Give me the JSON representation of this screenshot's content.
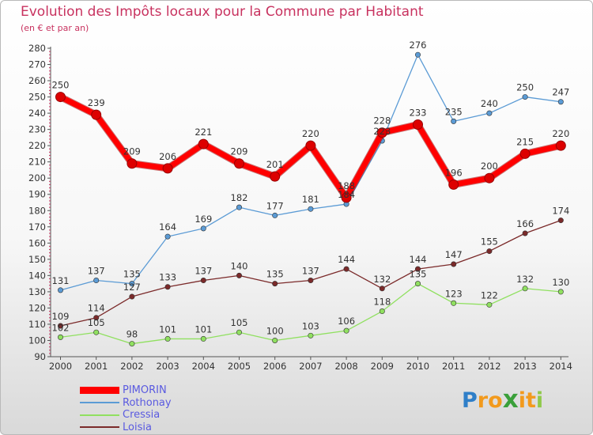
{
  "chart_data": {
    "type": "line",
    "title": "Evolution des Impôts locaux pour la Commune par Habitant",
    "subtitle": "(en € et par an)",
    "categories": [
      "2000",
      "2001",
      "2002",
      "2003",
      "2004",
      "2005",
      "2006",
      "2007",
      "2008",
      "2009",
      "2010",
      "2011",
      "2012",
      "2013",
      "2014"
    ],
    "ylim": [
      90,
      280
    ],
    "yticks": [
      90,
      100,
      110,
      120,
      130,
      140,
      150,
      160,
      170,
      180,
      190,
      200,
      210,
      220,
      230,
      240,
      250,
      260,
      270,
      280
    ],
    "grid": false,
    "legend_position": "bottom-left",
    "series": [
      {
        "name": "PIMORIN",
        "color": "#ff0000",
        "values": [
          250,
          239,
          209,
          206,
          221,
          209,
          201,
          220,
          188,
          228,
          233,
          196,
          200,
          215,
          220
        ]
      },
      {
        "name": "Rothonay",
        "color": "#5b9bd5",
        "values": [
          131,
          137,
          135,
          164,
          169,
          182,
          177,
          181,
          184,
          223,
          276,
          235,
          240,
          250,
          247
        ]
      },
      {
        "name": "Cressia",
        "color": "#90e060",
        "values": [
          102,
          105,
          98,
          101,
          101,
          105,
          100,
          103,
          106,
          118,
          135,
          123,
          122,
          132,
          130
        ]
      },
      {
        "name": "Loisia",
        "color": "#7b2a2a",
        "values": [
          109,
          114,
          127,
          133,
          137,
          140,
          135,
          137,
          144,
          132,
          144,
          147,
          155,
          166,
          174
        ]
      }
    ]
  },
  "brand": {
    "logo_letters": [
      "P",
      "r",
      "o",
      "x",
      "i",
      "t",
      "i"
    ],
    "logo_colors": [
      "#2f7fc8",
      "#f29a1d",
      "#f29a1d",
      "#3aa03a",
      "#f29a1d",
      "#f29a1d",
      "#8fc94a"
    ]
  }
}
